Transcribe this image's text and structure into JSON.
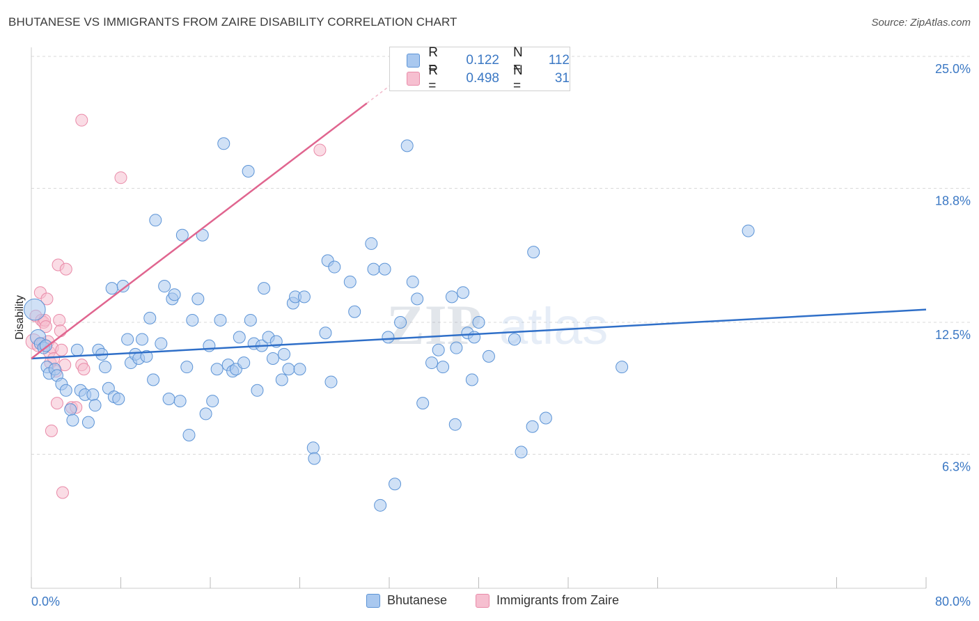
{
  "title": "BHUTANESE VS IMMIGRANTS FROM ZAIRE DISABILITY CORRELATION CHART",
  "source": "Source: ZipAtlas.com",
  "watermark": {
    "zip": "ZIP",
    "atlas": "atlas"
  },
  "colors": {
    "blue_fill": "#a9c8ef",
    "blue_stroke": "#5b93d6",
    "blue_line": "#2f6fc8",
    "pink_fill": "#f6bfd0",
    "pink_stroke": "#e98aa8",
    "pink_line": "#e0658f",
    "tick_text": "#3b78c4",
    "grid": "#d8d8d8"
  },
  "legend": {
    "rows": [
      {
        "r_label": "R =",
        "r_value": "0.122",
        "n_label": "N =",
        "n_value": "112",
        "series": "blue"
      },
      {
        "r_label": "R =",
        "r_value": "0.498",
        "n_label": "N =",
        "n_value": "31",
        "series": "pink"
      }
    ]
  },
  "bottom_legend": [
    {
      "label": "Bhutanese",
      "series": "blue"
    },
    {
      "label": "Immigrants from Zaire",
      "series": "pink"
    }
  ],
  "chart_data": {
    "type": "scatter",
    "title": "BHUTANESE VS IMMIGRANTS FROM ZAIRE DISABILITY CORRELATION CHART",
    "xlabel": "",
    "ylabel": "Disability",
    "xlim": [
      0,
      80
    ],
    "ylim": [
      0,
      25.0
    ],
    "x_tick_labels": [
      "0.0%",
      "80.0%"
    ],
    "y_ticks": [
      6.3,
      12.5,
      18.8,
      25.0
    ],
    "y_tick_labels": [
      "6.3%",
      "12.5%",
      "18.8%",
      "25.0%"
    ],
    "grid": true,
    "series": [
      {
        "name": "Bhutanese",
        "color": "blue",
        "R": 0.122,
        "N": 112,
        "trend": {
          "x0": 0,
          "y0": 10.8,
          "x1": 80,
          "y1": 13.1
        },
        "points": [
          [
            0.3,
            13.1,
            1.8
          ],
          [
            0.6,
            11.8,
            1.3
          ],
          [
            0.8,
            11.5,
            1
          ],
          [
            1.1,
            11.3,
            1
          ],
          [
            1.3,
            11.4,
            1
          ],
          [
            1.4,
            10.4,
            1
          ],
          [
            1.6,
            10.1,
            1
          ],
          [
            2.1,
            10.3,
            1
          ],
          [
            2.3,
            10.0,
            1
          ],
          [
            2.7,
            9.6,
            1
          ],
          [
            3.1,
            9.3,
            1
          ],
          [
            3.5,
            8.4,
            1
          ],
          [
            3.7,
            7.9,
            1
          ],
          [
            4.1,
            11.2,
            1
          ],
          [
            4.4,
            9.3,
            1
          ],
          [
            4.8,
            9.1,
            1
          ],
          [
            5.1,
            7.8,
            1
          ],
          [
            5.5,
            9.1,
            1
          ],
          [
            5.7,
            8.6,
            1
          ],
          [
            6.0,
            11.2,
            1
          ],
          [
            6.3,
            11.0,
            1
          ],
          [
            6.6,
            10.4,
            1
          ],
          [
            6.9,
            9.4,
            1
          ],
          [
            7.2,
            14.1,
            1
          ],
          [
            7.4,
            9.0,
            1
          ],
          [
            7.8,
            8.9,
            1
          ],
          [
            8.2,
            14.2,
            1
          ],
          [
            8.6,
            11.7,
            1
          ],
          [
            8.9,
            10.6,
            1
          ],
          [
            9.3,
            11.0,
            1
          ],
          [
            9.6,
            10.8,
            1
          ],
          [
            9.9,
            11.7,
            1
          ],
          [
            10.3,
            10.9,
            1
          ],
          [
            10.6,
            12.7,
            1
          ],
          [
            10.9,
            9.8,
            1
          ],
          [
            11.1,
            17.3,
            1
          ],
          [
            11.6,
            11.5,
            1
          ],
          [
            11.9,
            14.2,
            1
          ],
          [
            12.3,
            8.9,
            1
          ],
          [
            12.6,
            13.6,
            1
          ],
          [
            12.8,
            13.8,
            1
          ],
          [
            13.3,
            8.8,
            1
          ],
          [
            13.5,
            16.6,
            1
          ],
          [
            13.9,
            10.4,
            1
          ],
          [
            14.1,
            7.2,
            1
          ],
          [
            14.4,
            12.6,
            1
          ],
          [
            14.9,
            13.6,
            1
          ],
          [
            15.3,
            16.6,
            1
          ],
          [
            15.6,
            8.2,
            1
          ],
          [
            15.9,
            11.4,
            1
          ],
          [
            16.2,
            8.8,
            1
          ],
          [
            16.6,
            10.3,
            1
          ],
          [
            16.9,
            12.6,
            1
          ],
          [
            17.2,
            20.9,
            1
          ],
          [
            17.6,
            10.5,
            1
          ],
          [
            18.0,
            10.2,
            1
          ],
          [
            18.3,
            10.3,
            1
          ],
          [
            18.6,
            11.8,
            1
          ],
          [
            19.0,
            10.6,
            1
          ],
          [
            19.4,
            19.6,
            1
          ],
          [
            19.6,
            12.6,
            1
          ],
          [
            19.9,
            11.5,
            1
          ],
          [
            20.2,
            9.3,
            1
          ],
          [
            20.6,
            11.4,
            1
          ],
          [
            20.8,
            14.1,
            1
          ],
          [
            21.2,
            11.8,
            1
          ],
          [
            21.6,
            10.8,
            1
          ],
          [
            21.9,
            11.6,
            1
          ],
          [
            22.4,
            9.8,
            1
          ],
          [
            22.6,
            11.0,
            1
          ],
          [
            23.0,
            10.3,
            1
          ],
          [
            23.4,
            13.4,
            1
          ],
          [
            23.6,
            13.7,
            1
          ],
          [
            24.0,
            10.3,
            1
          ],
          [
            24.4,
            13.7,
            1
          ],
          [
            25.2,
            6.6,
            1
          ],
          [
            25.3,
            6.1,
            1
          ],
          [
            26.3,
            12.0,
            1
          ],
          [
            26.5,
            15.4,
            1
          ],
          [
            26.8,
            9.7,
            1
          ],
          [
            27.1,
            15.1,
            1
          ],
          [
            28.5,
            14.4,
            1
          ],
          [
            28.9,
            13.0,
            1
          ],
          [
            30.4,
            16.2,
            1
          ],
          [
            30.6,
            15.0,
            1
          ],
          [
            31.2,
            3.9,
            1
          ],
          [
            31.6,
            15.0,
            1
          ],
          [
            31.9,
            11.8,
            1
          ],
          [
            32.5,
            4.9,
            1
          ],
          [
            33.0,
            12.5,
            1
          ],
          [
            33.6,
            20.8,
            1
          ],
          [
            34.1,
            14.4,
            1
          ],
          [
            34.5,
            13.6,
            1
          ],
          [
            35.0,
            8.7,
            1
          ],
          [
            35.8,
            10.6,
            1
          ],
          [
            36.4,
            11.2,
            1
          ],
          [
            36.8,
            10.4,
            1
          ],
          [
            37.6,
            13.7,
            1
          ],
          [
            37.9,
            7.7,
            1
          ],
          [
            38.0,
            11.3,
            1
          ],
          [
            38.6,
            13.9,
            1
          ],
          [
            39.0,
            12.0,
            1
          ],
          [
            39.4,
            9.8,
            1
          ],
          [
            39.6,
            11.8,
            1
          ],
          [
            40.0,
            12.5,
            1
          ],
          [
            40.9,
            10.9,
            1
          ],
          [
            43.2,
            11.7,
            1
          ],
          [
            43.8,
            6.4,
            1
          ],
          [
            44.8,
            7.6,
            1
          ],
          [
            44.9,
            15.8,
            1
          ],
          [
            46.0,
            8.0,
            1
          ],
          [
            52.8,
            10.4,
            1
          ],
          [
            64.1,
            16.8,
            1
          ]
        ]
      },
      {
        "name": "Immigrants from Zaire",
        "color": "pink",
        "R": 0.498,
        "N": 31,
        "trend": {
          "x0": 0,
          "y0": 10.8,
          "x1": 30,
          "y1": 22.8,
          "dash_to_x": 33,
          "dash_to_y": 24.0
        },
        "points": [
          [
            0.2,
            11.6,
            1.3
          ],
          [
            0.4,
            12.8,
            1
          ],
          [
            0.6,
            11.4,
            1
          ],
          [
            0.8,
            13.9,
            1
          ],
          [
            0.9,
            12.6,
            1
          ],
          [
            1.0,
            11.5,
            1
          ],
          [
            1.1,
            12.5,
            1
          ],
          [
            1.2,
            12.6,
            1
          ],
          [
            1.3,
            12.3,
            1
          ],
          [
            1.4,
            13.6,
            1
          ],
          [
            1.5,
            11.6,
            1
          ],
          [
            1.6,
            11.1,
            1
          ],
          [
            1.7,
            10.6,
            1
          ],
          [
            1.8,
            7.4,
            1
          ],
          [
            1.9,
            11.3,
            1
          ],
          [
            2.0,
            10.8,
            1
          ],
          [
            2.2,
            10.2,
            1
          ],
          [
            2.3,
            8.7,
            1
          ],
          [
            2.4,
            15.2,
            1
          ],
          [
            2.5,
            12.6,
            1
          ],
          [
            2.6,
            12.1,
            1
          ],
          [
            2.7,
            11.2,
            1
          ],
          [
            2.8,
            4.5,
            1
          ],
          [
            3.0,
            10.5,
            1
          ],
          [
            3.1,
            15.0,
            1
          ],
          [
            3.6,
            8.5,
            1
          ],
          [
            4.0,
            8.5,
            1
          ],
          [
            4.5,
            10.5,
            1
          ],
          [
            4.7,
            10.3,
            1
          ],
          [
            4.5,
            22.0,
            1
          ],
          [
            8.0,
            19.3,
            1
          ],
          [
            25.8,
            20.6,
            1
          ]
        ]
      }
    ]
  }
}
